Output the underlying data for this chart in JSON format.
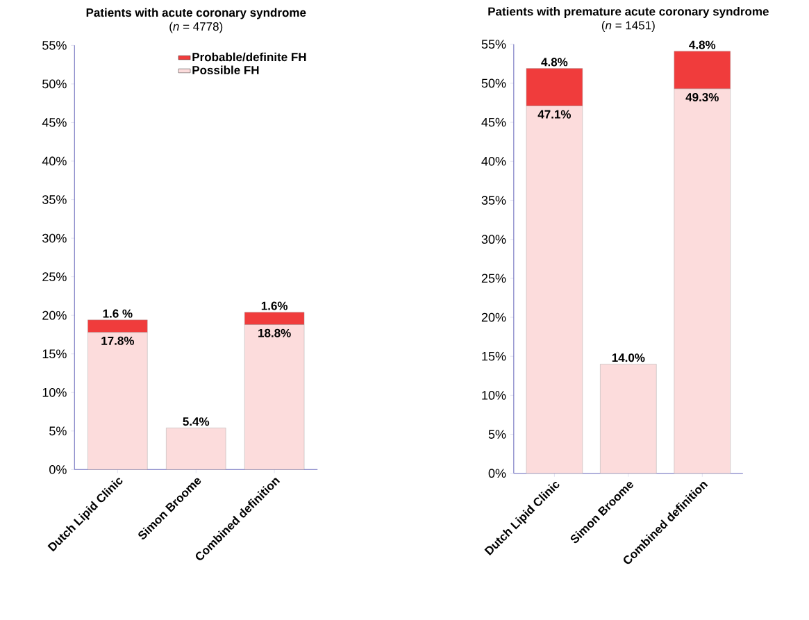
{
  "chart_data": [
    {
      "type": "bar",
      "stacked": true,
      "title": "Patients with acute coronary syndrome",
      "subtitle": "(*n* = 4778)",
      "categories": [
        "Dutch Lipid Clinic",
        "Simon Broome",
        "Combined definition"
      ],
      "series": [
        {
          "name": "Possible FH",
          "color": "#fcdcdc",
          "values": [
            17.8,
            5.4,
            18.8
          ],
          "value_labels": [
            "17.8%",
            "5.4%",
            "18.8%"
          ]
        },
        {
          "name": "Probable/definite FH",
          "color": "#f03c3c",
          "values": [
            1.6,
            null,
            1.6
          ],
          "value_labels": [
            "1.6 %",
            null,
            "1.6%"
          ]
        }
      ],
      "ylim": [
        0,
        55
      ],
      "yticks": [
        {
          "value": 0,
          "label": "0%"
        },
        {
          "value": 5,
          "label": "5%"
        },
        {
          "value": 10,
          "label": "10%"
        },
        {
          "value": 15,
          "label": "15%"
        },
        {
          "value": 20,
          "label": "20%"
        },
        {
          "value": 25,
          "label": "25%"
        },
        {
          "value": 30,
          "label": "30%"
        },
        {
          "value": 35,
          "label": "35%"
        },
        {
          "value": 40,
          "label": "40%"
        },
        {
          "value": 45,
          "label": "45%"
        },
        {
          "value": 50,
          "label": "50%"
        },
        {
          "value": 55,
          "label": "55%"
        }
      ],
      "legend": "top right"
    },
    {
      "type": "bar",
      "stacked": true,
      "title": "Patients with premature acute coronary syndrome",
      "subtitle": "(*n* = 1451)",
      "categories": [
        "Dutch Lipid Clinic",
        "Simon Broome",
        "Combined definition"
      ],
      "series": [
        {
          "color": "#fcdcdc",
          "values": [
            47.1,
            14.0,
            49.3
          ],
          "value_labels": [
            "47.1%",
            "14.0%",
            "49.3%"
          ]
        },
        {
          "color": "#f03c3c",
          "values": [
            4.8,
            null,
            4.8
          ],
          "value_labels": [
            "4.8%",
            null,
            "4.8%"
          ]
        }
      ],
      "ylim": [
        0,
        55
      ],
      "yticks": [
        {
          "value": 0,
          "label": "0%"
        },
        {
          "value": 5,
          "label": "5%"
        },
        {
          "value": 10,
          "label": "10%"
        },
        {
          "value": 15,
          "label": "15%"
        },
        {
          "value": 20,
          "label": "20%"
        },
        {
          "value": 25,
          "label": "25%"
        },
        {
          "value": 30,
          "label": "30%"
        },
        {
          "value": 35,
          "label": "35%"
        },
        {
          "value": 40,
          "label": "40%"
        },
        {
          "value": 45,
          "label": "45%"
        },
        {
          "value": 50,
          "label": "50%"
        },
        {
          "value": 55,
          "label": "55%"
        }
      ]
    }
  ]
}
